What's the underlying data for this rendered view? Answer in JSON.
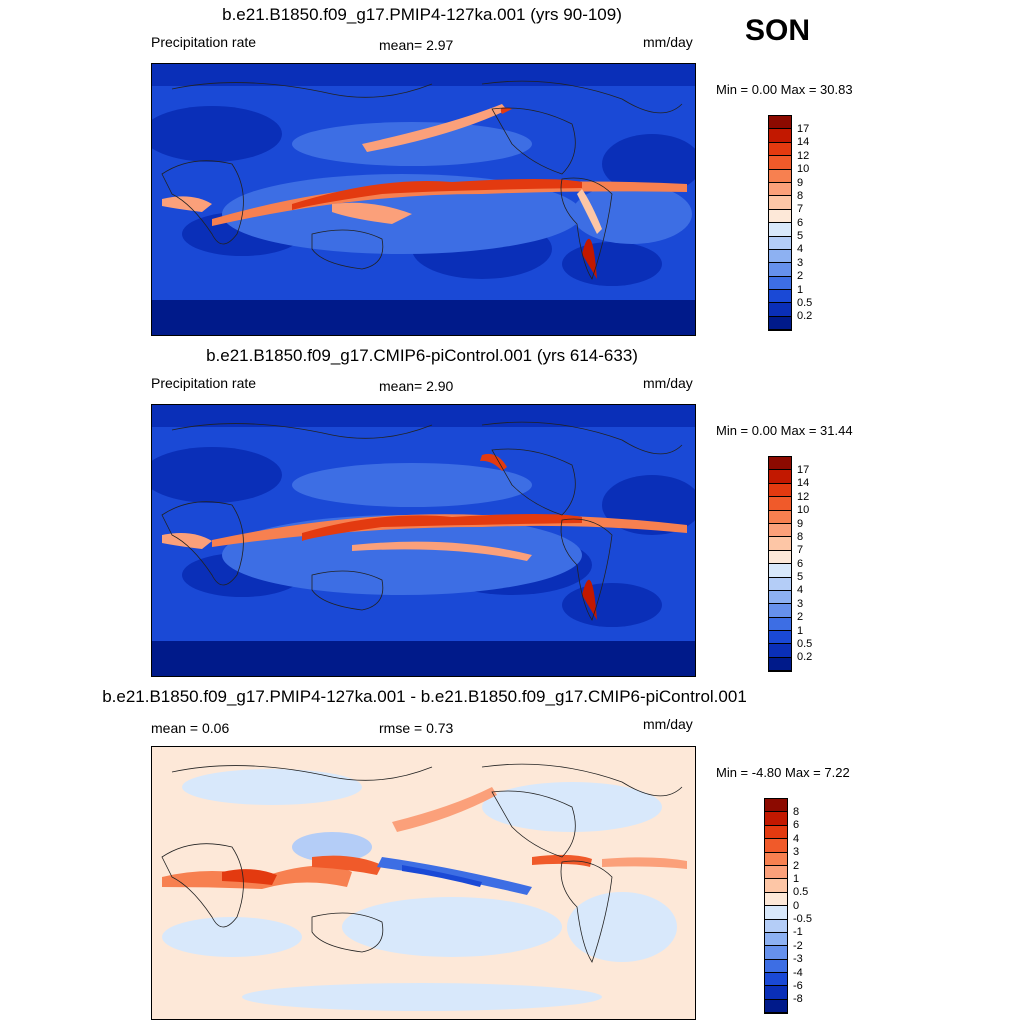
{
  "season": "SON",
  "panels": [
    {
      "title": "b.e21.B1850.f09_g17.PMIP4-127ka.001 (yrs 90-109)",
      "left_label": "Precipitation rate",
      "center_label": "mean=   2.97",
      "right_label": "mm/day",
      "minmax": "Min =    0.00 Max =  30.83",
      "kind": "abs"
    },
    {
      "title": "b.e21.B1850.f09_g17.CMIP6-piControl.001 (yrs 614-633)",
      "left_label": "Precipitation rate",
      "center_label": "mean=   2.90",
      "right_label": "mm/day",
      "minmax": "Min =    0.00 Max =  31.44",
      "kind": "abs"
    },
    {
      "title": "b.e21.B1850.f09_g17.PMIP4-127ka.001 - b.e21.B1850.f09_g17.CMIP6-piControl.001",
      "left_label": "mean =    0.06",
      "center_label": "rmse =    0.73",
      "right_label": "mm/day",
      "minmax": "Min =  -4.80 Max =    7.22",
      "kind": "diff"
    }
  ],
  "colorbars": {
    "abs": {
      "labels": [
        "17",
        "14",
        "12",
        "10",
        "9",
        "8",
        "7",
        "6",
        "5",
        "4",
        "3",
        "2",
        "1",
        "0.5",
        "0.2"
      ],
      "colors": [
        "#8c0a00",
        "#c21800",
        "#e33a10",
        "#f05a2a",
        "#f78050",
        "#fba07a",
        "#fdc6a6",
        "#fde8d8",
        "#d8e8fb",
        "#b4cdf7",
        "#8db1f2",
        "#6691ec",
        "#3d6ee4",
        "#1a49d6",
        "#0a2fb8",
        "#001a8a"
      ]
    },
    "diff": {
      "labels": [
        "8",
        "6",
        "4",
        "3",
        "2",
        "1",
        "0.5",
        "0",
        "-0.5",
        "-1",
        "-2",
        "-3",
        "-4",
        "-6",
        "-8"
      ],
      "colors": [
        "#8c0a00",
        "#c21800",
        "#e33a10",
        "#f05a2a",
        "#f78050",
        "#fba07a",
        "#fdc6a6",
        "#fde8d8",
        "#d8e8fb",
        "#b4cdf7",
        "#8db1f2",
        "#6691ec",
        "#3d6ee4",
        "#1a49d6",
        "#0a2fb8",
        "#001a8a"
      ]
    }
  }
}
